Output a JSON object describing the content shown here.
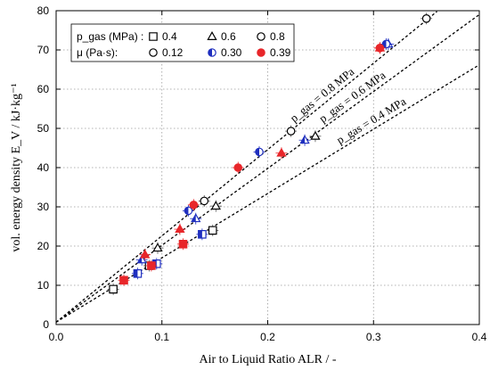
{
  "chart_data": {
    "type": "scatter",
    "xlabel": "Air to Liquid Ratio ALR / -",
    "ylabel": "vol. energy density E_V / kJ·kg⁻¹",
    "xlim": [
      0.0,
      0.4
    ],
    "ylim": [
      0,
      80
    ],
    "xticks": [
      "0.0",
      "0.1",
      "0.2",
      "0.3",
      "0.4"
    ],
    "xtick_values": [
      0.0,
      0.1,
      0.2,
      0.3,
      0.4
    ],
    "yticks": [
      "0",
      "10",
      "20",
      "30",
      "40",
      "50",
      "60",
      "70",
      "80"
    ],
    "ytick_values": [
      0,
      10,
      20,
      30,
      40,
      50,
      60,
      70,
      80
    ],
    "grid": "dotted",
    "legend": {
      "placement": "top-left",
      "row1_label": "p_gas (MPa) :",
      "row2_label": "μ (Pa·s):",
      "pressure_entries": [
        {
          "marker": "square",
          "label": "0.4"
        },
        {
          "marker": "triangle",
          "label": "0.6"
        },
        {
          "marker": "circle",
          "label": "0.8"
        }
      ],
      "viscosity_entries": [
        {
          "fill": "open",
          "label": "0.12",
          "color": "#000000"
        },
        {
          "fill": "half",
          "label": "0.30",
          "color": "#1f2fbf"
        },
        {
          "fill": "full",
          "label": "0.39",
          "color": "#e8262a"
        }
      ]
    },
    "fit_lines": [
      {
        "label": "p_gas = 0.8 MPa",
        "slope": 220,
        "intercept": 0.6,
        "x_end": 0.36
      },
      {
        "label": "p_gas = 0.6 MPa",
        "slope": 196,
        "intercept": 0.6,
        "x_end": 0.4
      },
      {
        "label": "p_gas = 0.4 MPa",
        "slope": 164,
        "intercept": 0.6,
        "x_end": 0.4
      }
    ],
    "series": [
      {
        "marker": "square",
        "fill": "open",
        "color": "#000000",
        "x": [
          0.054,
          0.088,
          0.148
        ],
        "y": [
          9.0,
          15.0,
          24.0
        ]
      },
      {
        "marker": "square",
        "fill": "half",
        "color": "#1f2fbf",
        "x": [
          0.077,
          0.095,
          0.138
        ],
        "y": [
          13.0,
          15.5,
          23.0
        ]
      },
      {
        "marker": "square",
        "fill": "full",
        "color": "#e8262a",
        "x": [
          0.064,
          0.09,
          0.12
        ],
        "y": [
          11.3,
          15.0,
          20.5
        ]
      },
      {
        "marker": "triangle",
        "fill": "open",
        "color": "#000000",
        "x": [
          0.096,
          0.151,
          0.245
        ],
        "y": [
          19.5,
          30.2,
          48.0
        ]
      },
      {
        "marker": "triangle",
        "fill": "half",
        "color": "#1f2fbf",
        "x": [
          0.081,
          0.132,
          0.235,
          0.314
        ],
        "y": [
          16.5,
          27.0,
          47.0,
          71.5
        ]
      },
      {
        "marker": "triangle",
        "fill": "full",
        "color": "#e8262a",
        "x": [
          0.084,
          0.117,
          0.213,
          0.306
        ],
        "y": [
          17.8,
          24.3,
          43.7,
          70.5
        ]
      },
      {
        "marker": "circle",
        "fill": "open",
        "color": "#000000",
        "x": [
          0.14,
          0.222,
          0.35
        ],
        "y": [
          31.5,
          49.3,
          78.0
        ]
      },
      {
        "marker": "circle",
        "fill": "half",
        "color": "#1f2fbf",
        "x": [
          0.125,
          0.192,
          0.312
        ],
        "y": [
          29.0,
          44.0,
          71.5
        ]
      },
      {
        "marker": "circle",
        "fill": "full",
        "color": "#e8262a",
        "x": [
          0.13,
          0.172,
          0.306
        ],
        "y": [
          30.5,
          40.0,
          70.5
        ]
      }
    ]
  }
}
